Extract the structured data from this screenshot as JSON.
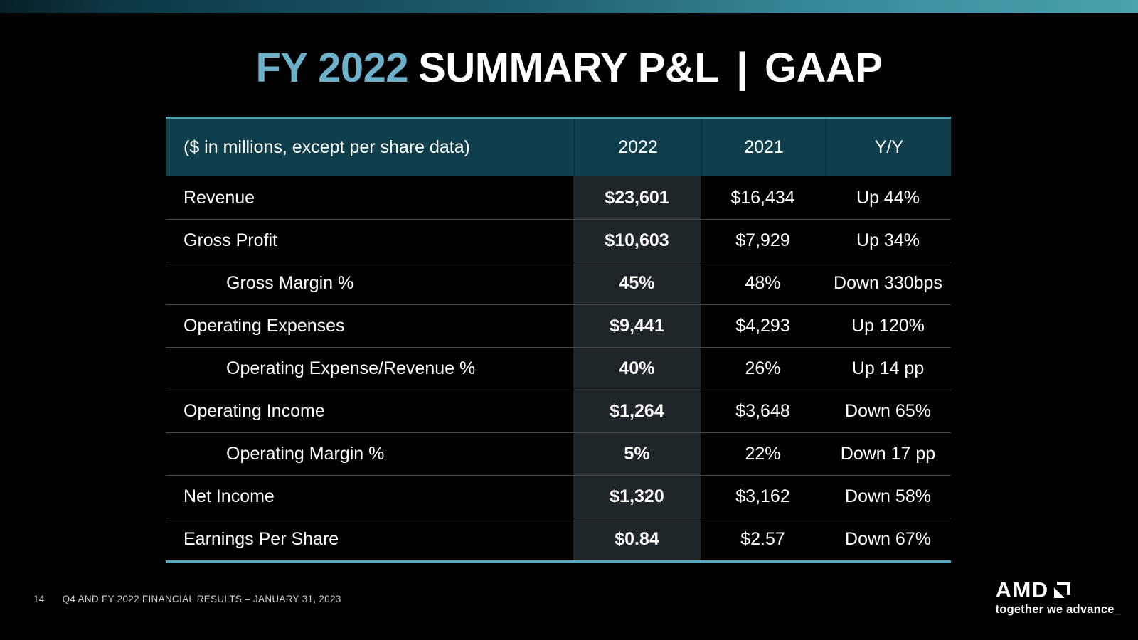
{
  "title": {
    "highlight": "FY 2022",
    "main": "SUMMARY P&L",
    "separator": "|",
    "suffix": "GAAP"
  },
  "table": {
    "header": {
      "label": "($ in millions, except per share data)",
      "col_2022": "2022",
      "col_2021": "2021",
      "col_yoy": "Y/Y"
    },
    "rows": [
      {
        "label": "Revenue",
        "indent": false,
        "v2022": "$23,601",
        "v2021": "$16,434",
        "yoy": "Up 44%"
      },
      {
        "label": "Gross Profit",
        "indent": false,
        "v2022": "$10,603",
        "v2021": "$7,929",
        "yoy": "Up 34%"
      },
      {
        "label": "Gross Margin %",
        "indent": true,
        "v2022": "45%",
        "v2021": "48%",
        "yoy": "Down 330bps"
      },
      {
        "label": "Operating Expenses",
        "indent": false,
        "v2022": "$9,441",
        "v2021": "$4,293",
        "yoy": "Up 120%"
      },
      {
        "label": "Operating Expense/Revenue %",
        "indent": true,
        "v2022": "40%",
        "v2021": "26%",
        "yoy": "Up 14 pp"
      },
      {
        "label": "Operating Income",
        "indent": false,
        "v2022": "$1,264",
        "v2021": "$3,648",
        "yoy": "Down 65%"
      },
      {
        "label": "Operating Margin %",
        "indent": true,
        "v2022": "5%",
        "v2021": "22%",
        "yoy": "Down 17 pp"
      },
      {
        "label": "Net Income",
        "indent": false,
        "v2022": "$1,320",
        "v2021": "$3,162",
        "yoy": "Down 58%"
      },
      {
        "label": "Earnings Per Share",
        "indent": false,
        "v2022": "$0.84",
        "v2021": "$2.57",
        "yoy": "Down 67%"
      }
    ]
  },
  "footer": {
    "page_number": "14",
    "caption": "Q4 AND FY 2022 FINANCIAL RESULTS – JANUARY 31, 2023"
  },
  "brand": {
    "logo_text": "AMD",
    "tagline": "together we advance_"
  },
  "colors": {
    "accent_teal_top": "#4E9FB3",
    "accent_teal_bottom": "#58A8BE",
    "header_bg": "#0F3F4D",
    "header_separator": "#0A3440",
    "highlight_column_bg": "#1F262A",
    "row_separator": "#4A4A4A",
    "title_accent": "#6CB0C9",
    "topbar_gradient_start": "#0A2E3A",
    "topbar_gradient_end": "#4AA2AE",
    "background": "#000000"
  }
}
